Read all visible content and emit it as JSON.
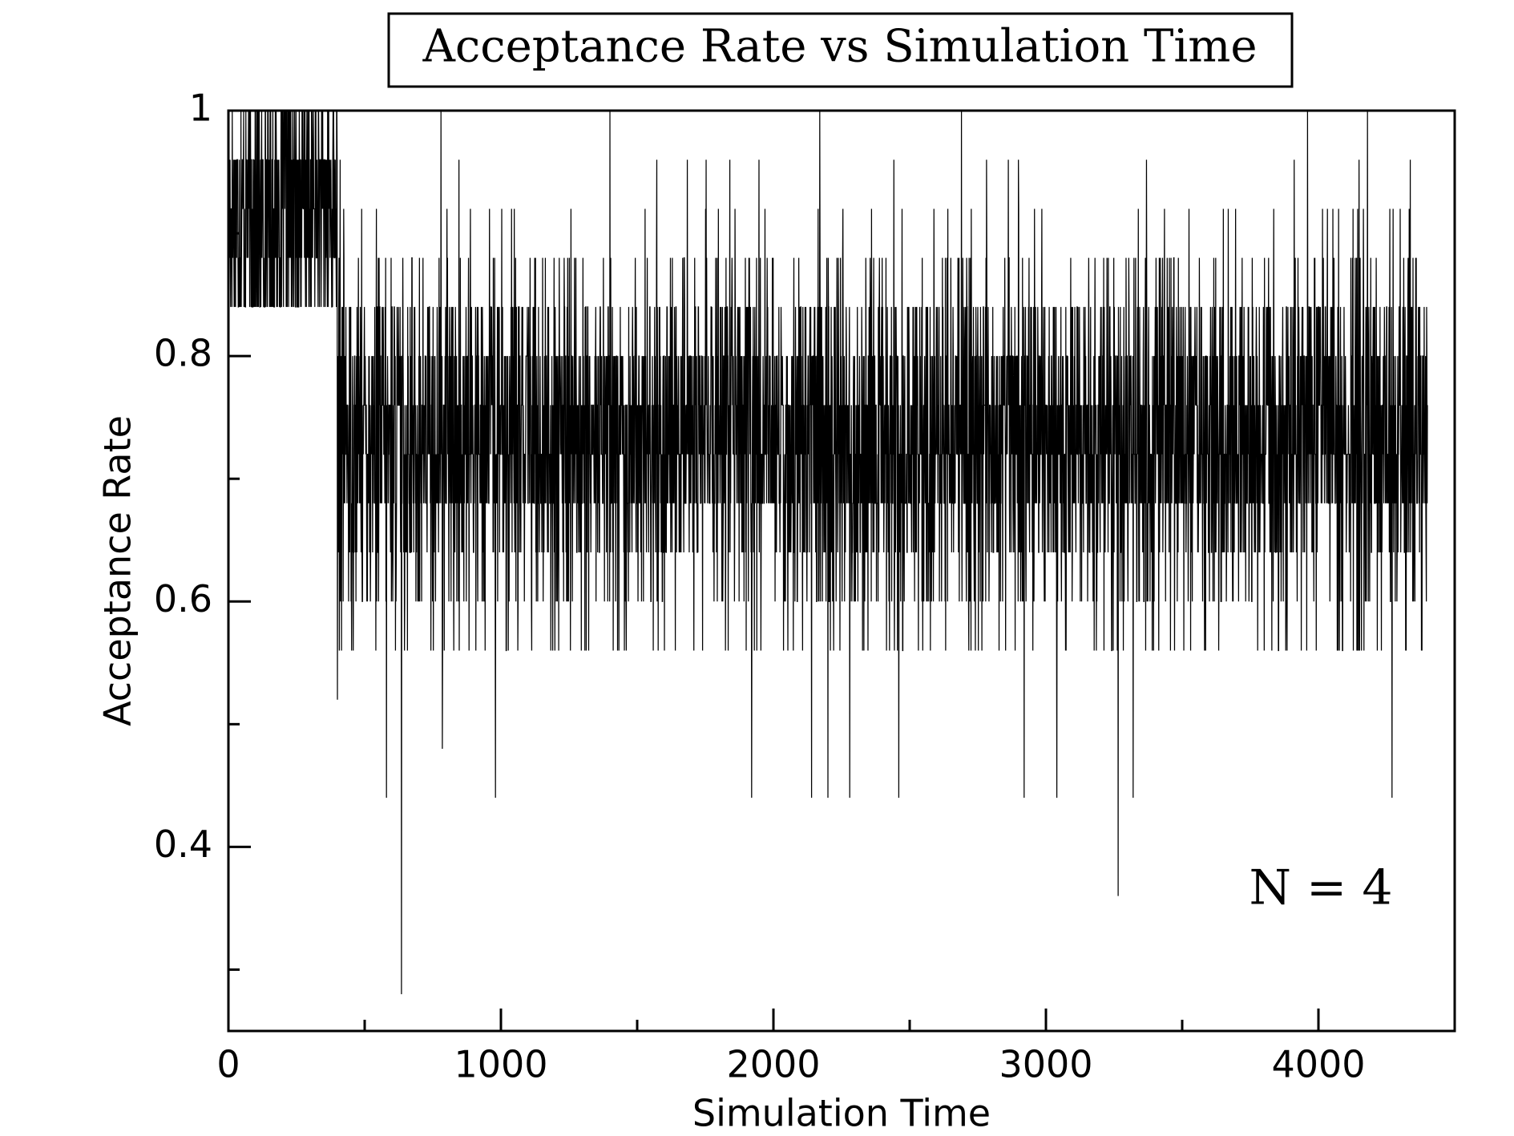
{
  "chart_data": {
    "type": "line",
    "title": "Acceptance Rate vs Simulation Time",
    "xlabel": "Simulation Time",
    "ylabel": "Acceptance Rate",
    "xlim": [
      0,
      4500
    ],
    "ylim": [
      0.25,
      1.0
    ],
    "x_ticks": [
      0,
      1000,
      2000,
      3000,
      4000
    ],
    "x_tick_labels": [
      "0",
      "1000",
      "2000",
      "3000",
      "4000"
    ],
    "x_minor_ticks": [
      500,
      1500,
      2500,
      3500
    ],
    "y_ticks": [
      0.4,
      0.6,
      0.8,
      1.0
    ],
    "y_tick_labels": [
      "0.4",
      "0.6",
      "0.8",
      "1"
    ],
    "y_minor_ticks": [
      0.3,
      0.5,
      0.7,
      0.9
    ],
    "grid": false,
    "legend": "none",
    "annotation": "N = 4",
    "line_color": "#000000",
    "series": [
      {
        "x_start": 0,
        "x_step": 1,
        "x_end": 4400,
        "phase_1_x_range": [
          0,
          400
        ],
        "phase_1_values": [
          0.84,
          0.88,
          0.92,
          0.96,
          1.0
        ],
        "phase_2_x_range": [
          400,
          4400
        ],
        "phase_2_values": [
          0.56,
          0.6,
          0.64,
          0.68,
          0.72,
          0.76,
          0.8,
          0.84,
          0.88,
          0.92,
          0.96
        ],
        "notable_minima": [
          {
            "x": 400,
            "y": 0.52
          },
          {
            "x": 580,
            "y": 0.44
          },
          {
            "x": 635,
            "y": 0.28
          },
          {
            "x": 785,
            "y": 0.48
          },
          {
            "x": 980,
            "y": 0.44
          },
          {
            "x": 1920,
            "y": 0.44
          },
          {
            "x": 2140,
            "y": 0.44
          },
          {
            "x": 2200,
            "y": 0.44
          },
          {
            "x": 2280,
            "y": 0.44
          },
          {
            "x": 2460,
            "y": 0.44
          },
          {
            "x": 2920,
            "y": 0.44
          },
          {
            "x": 3040,
            "y": 0.44
          },
          {
            "x": 3265,
            "y": 0.36
          },
          {
            "x": 3320,
            "y": 0.44
          },
          {
            "x": 4270,
            "y": 0.44
          }
        ],
        "notable_maxima": [
          {
            "x": 410,
            "y": 0.96
          },
          {
            "x": 780,
            "y": 1.0
          },
          {
            "x": 1400,
            "y": 1.0
          },
          {
            "x": 2170,
            "y": 1.0
          },
          {
            "x": 2690,
            "y": 1.0
          },
          {
            "x": 3960,
            "y": 1.0
          },
          {
            "x": 4180,
            "y": 1.0
          }
        ]
      }
    ]
  }
}
